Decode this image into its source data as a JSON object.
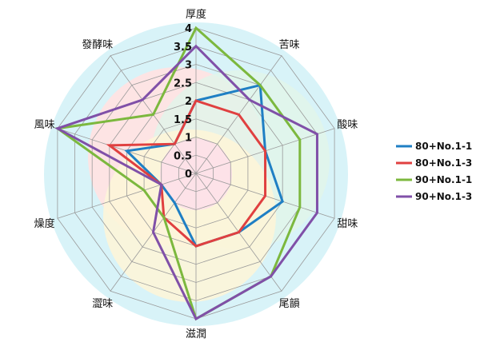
{
  "chart_data": {
    "type": "radar",
    "title": "",
    "axes": [
      "厚度",
      "苦味",
      "酸味",
      "甜味",
      "尾韻",
      "滋潤",
      "澀味",
      "燥度",
      "風味",
      "發酵味"
    ],
    "rlim": [
      0,
      4
    ],
    "ticks": [
      "0",
      "0.5",
      "1",
      "1.5",
      "2",
      "2.5",
      "3",
      "3.5",
      "4"
    ],
    "grid": true,
    "legend_position": "right",
    "series": [
      {
        "name": "80+No.1-1",
        "color": "#1f7fc4",
        "values": [
          2,
          3,
          2,
          2.5,
          2,
          2,
          1,
          1,
          2,
          1
        ]
      },
      {
        "name": "80+No.1-3",
        "color": "#e04040",
        "values": [
          2,
          2,
          2,
          2,
          2,
          2,
          1.5,
          1,
          2.5,
          1
        ]
      },
      {
        "name": "90+No.1-1",
        "color": "#7cb83e",
        "values": [
          4,
          3,
          3,
          3,
          3.5,
          4,
          1.5,
          1.5,
          4,
          2
        ]
      },
      {
        "name": "90+No.1-3",
        "color": "#8050a8",
        "values": [
          3.5,
          2.5,
          3.5,
          3.5,
          3.5,
          4,
          2,
          1,
          4,
          2.5
        ]
      }
    ]
  }
}
